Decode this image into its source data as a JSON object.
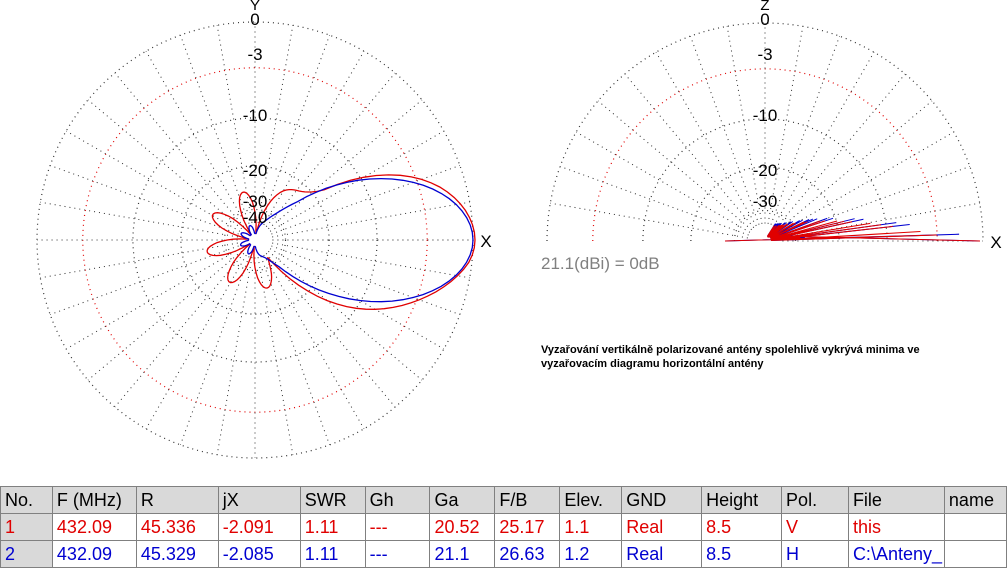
{
  "horizontal_plot": {
    "axis_y_label": "Y",
    "axis_x_label": "X",
    "ring_labels": [
      "0",
      "-3",
      "-10",
      "-20",
      "-30",
      "-40"
    ]
  },
  "vertical_plot": {
    "axis_z_label": "Z",
    "axis_x_label": "X",
    "ring_labels": [
      "0",
      "-3",
      "-10",
      "-20",
      "-30"
    ],
    "reference": "21.1(dBi) = 0dB"
  },
  "note": "Vyzařování vertikálně polarizované antény spolehlivě vykrývá minima ve vyzařovacím diagramu horizontální antény",
  "table": {
    "headers": [
      "No.",
      "F (MHz)",
      "R",
      "jX",
      "SWR",
      "Gh",
      "Ga",
      "F/B",
      "Elev.",
      "GND",
      "Height",
      "Pol.",
      "File",
      "name"
    ],
    "rows": [
      [
        "1",
        "432.09",
        "45.336",
        "-2.091",
        "1.11",
        "---",
        "20.52",
        "25.17",
        "1.1",
        "Real",
        "8.5",
        "V",
        "this",
        ""
      ],
      [
        "2",
        "432.09",
        "45.329",
        "-2.085",
        "1.11",
        "---",
        "21.1",
        "26.63",
        "1.2",
        "Real",
        "8.5",
        "H",
        "C:\\Anteny_",
        ""
      ]
    ]
  },
  "colors": {
    "trace1": "#e00000",
    "trace2": "#0000d0",
    "grid": "#303030",
    "ring3db": "#e00000"
  }
}
